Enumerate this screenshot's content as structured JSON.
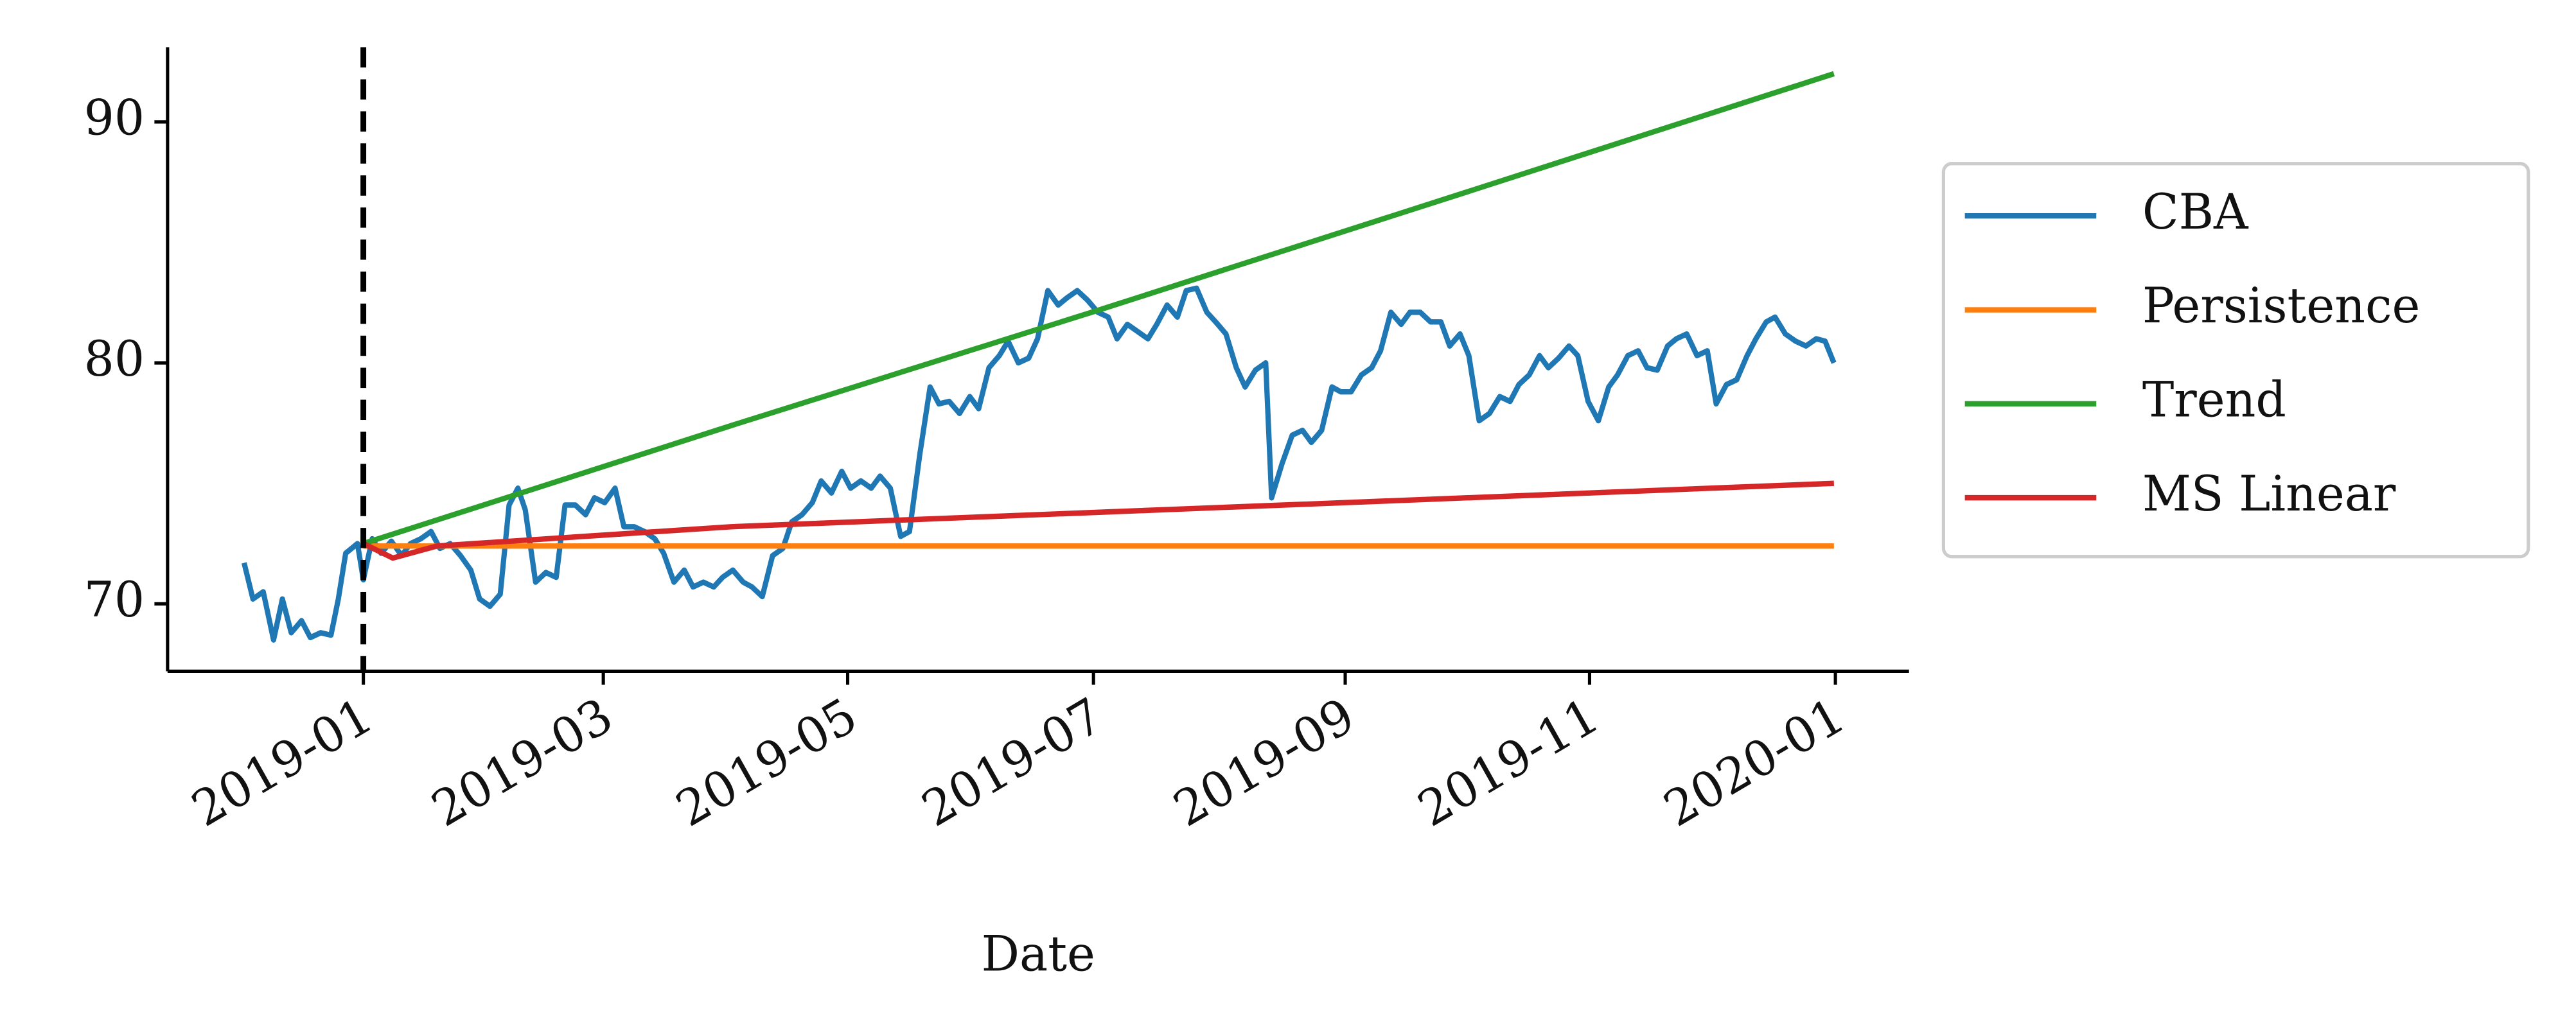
{
  "chart_data": {
    "type": "line",
    "x_label": "Date",
    "xlim": [
      2018.867,
      2020.05
    ],
    "ylim": [
      67.2,
      93.1
    ],
    "xticks": [
      {
        "value": 2019.0,
        "label": "2019-01"
      },
      {
        "value": 2019.163,
        "label": "2019-03"
      },
      {
        "value": 2019.329,
        "label": "2019-05"
      },
      {
        "value": 2019.496,
        "label": "2019-07"
      },
      {
        "value": 2019.667,
        "label": "2019-09"
      },
      {
        "value": 2019.833,
        "label": "2019-11"
      },
      {
        "value": 2020.0,
        "label": "2020-01"
      }
    ],
    "yticks": [
      70,
      80,
      90
    ],
    "vline_x": 2019.0,
    "legend": "outside right",
    "series": [
      {
        "name": "CBA",
        "color": "#1f77b4",
        "x": [
          2018.919,
          2018.925,
          2018.932,
          2018.939,
          2018.945,
          2018.951,
          2018.958,
          2018.964,
          2018.971,
          2018.978,
          2018.983,
          2018.988,
          2018.996,
          2019.0,
          2019.006,
          2019.012,
          2019.019,
          2019.026,
          2019.032,
          2019.039,
          2019.046,
          2019.052,
          2019.059,
          2019.066,
          2019.073,
          2019.079,
          2019.086,
          2019.093,
          2019.099,
          2019.105,
          2019.11,
          2019.117,
          2019.124,
          2019.131,
          2019.137,
          2019.144,
          2019.151,
          2019.157,
          2019.164,
          2019.171,
          2019.177,
          2019.184,
          2019.191,
          2019.198,
          2019.204,
          2019.211,
          2019.218,
          2019.224,
          2019.231,
          2019.238,
          2019.244,
          2019.251,
          2019.258,
          2019.264,
          2019.271,
          2019.278,
          2019.285,
          2019.291,
          2019.298,
          2019.305,
          2019.311,
          2019.318,
          2019.325,
          2019.331,
          2019.338,
          2019.345,
          2019.351,
          2019.358,
          2019.365,
          2019.371,
          2019.378,
          2019.385,
          2019.391,
          2019.398,
          2019.405,
          2019.412,
          2019.418,
          2019.425,
          2019.432,
          2019.438,
          2019.445,
          2019.452,
          2019.458,
          2019.465,
          2019.472,
          2019.478,
          2019.485,
          2019.492,
          2019.499,
          2019.506,
          2019.512,
          2019.519,
          2019.526,
          2019.533,
          2019.539,
          2019.546,
          2019.553,
          2019.559,
          2019.566,
          2019.573,
          2019.579,
          2019.586,
          2019.593,
          2019.599,
          2019.606,
          2019.613,
          2019.617,
          2019.624,
          2019.631,
          2019.638,
          2019.644,
          2019.651,
          2019.658,
          2019.664,
          2019.671,
          2019.678,
          2019.685,
          2019.691,
          2019.698,
          2019.705,
          2019.711,
          2019.718,
          2019.725,
          2019.732,
          2019.738,
          2019.745,
          2019.751,
          2019.758,
          2019.765,
          2019.772,
          2019.779,
          2019.785,
          2019.792,
          2019.799,
          2019.805,
          2019.812,
          2019.819,
          2019.825,
          2019.832,
          2019.839,
          2019.846,
          2019.852,
          2019.859,
          2019.866,
          2019.872,
          2019.879,
          2019.886,
          2019.892,
          2019.899,
          2019.906,
          2019.913,
          2019.919,
          2019.926,
          2019.933,
          2019.94,
          2019.946,
          2019.953,
          2019.959,
          2019.966,
          2019.973,
          2019.98,
          2019.987,
          2019.993,
          2019.999
        ],
        "values": [
          71.7,
          70.2,
          70.5,
          68.5,
          70.2,
          68.8,
          69.3,
          68.6,
          68.8,
          68.7,
          70.2,
          72.1,
          72.5,
          71.0,
          72.7,
          72.1,
          72.6,
          72.0,
          72.5,
          72.7,
          73.0,
          72.3,
          72.5,
          72.0,
          71.4,
          70.2,
          69.9,
          70.4,
          74.1,
          74.8,
          73.9,
          70.9,
          71.3,
          71.1,
          74.1,
          74.1,
          73.7,
          74.4,
          74.2,
          74.8,
          73.2,
          73.2,
          73.0,
          72.7,
          72.1,
          70.9,
          71.4,
          70.7,
          70.9,
          70.7,
          71.1,
          71.4,
          70.9,
          70.7,
          70.3,
          72.0,
          72.3,
          73.4,
          73.7,
          74.2,
          75.1,
          74.6,
          75.5,
          74.8,
          75.1,
          74.8,
          75.3,
          74.8,
          72.8,
          73.0,
          76.2,
          79.0,
          78.3,
          78.4,
          77.9,
          78.6,
          78.1,
          79.8,
          80.3,
          80.9,
          80.0,
          80.2,
          81.0,
          83.0,
          82.4,
          82.7,
          83.0,
          82.6,
          82.1,
          81.9,
          81.0,
          81.6,
          81.3,
          81.0,
          81.6,
          82.4,
          81.9,
          83.0,
          83.1,
          82.1,
          81.7,
          81.2,
          79.8,
          79.0,
          79.7,
          80.0,
          74.4,
          75.8,
          77.0,
          77.2,
          76.7,
          77.2,
          79.0,
          78.8,
          78.8,
          79.5,
          79.8,
          80.5,
          82.1,
          81.6,
          82.1,
          82.1,
          81.7,
          81.7,
          80.7,
          81.2,
          80.3,
          77.6,
          77.9,
          78.6,
          78.4,
          79.1,
          79.5,
          80.3,
          79.8,
          80.2,
          80.7,
          80.3,
          78.4,
          77.6,
          79.0,
          79.5,
          80.3,
          80.5,
          79.8,
          79.7,
          80.7,
          81.0,
          81.2,
          80.3,
          80.5,
          78.3,
          79.1,
          79.3,
          80.3,
          81.0,
          81.7,
          81.9,
          81.2,
          80.9,
          80.7,
          81.0,
          80.9,
          80.0
        ]
      },
      {
        "name": "Persistence",
        "color": "#ff7f0e",
        "x": [
          2019.0,
          2019.999
        ],
        "values": [
          72.4,
          72.4
        ]
      },
      {
        "name": "Trend",
        "color": "#2ca02c",
        "x": [
          2019.0,
          2019.25,
          2019.5,
          2019.75,
          2019.999
        ],
        "values": [
          72.5,
          77.4,
          82.2,
          87.1,
          92.0
        ]
      },
      {
        "name": "MS Linear",
        "color": "#d62728",
        "x": [
          2019.0,
          2019.02,
          2019.05,
          2019.25,
          2019.5,
          2019.75,
          2019.999
        ],
        "values": [
          72.5,
          71.9,
          72.4,
          73.2,
          73.8,
          74.4,
          75.0
        ]
      }
    ]
  }
}
